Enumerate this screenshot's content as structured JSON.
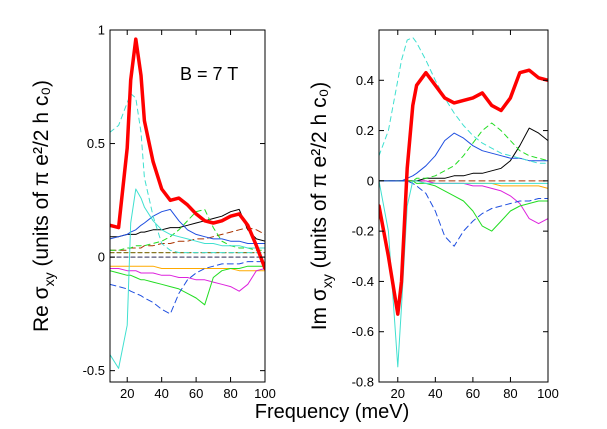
{
  "figure": {
    "xlabel": "Frequency  (meV)",
    "annotation": "B = 7 T"
  },
  "chart_data": [
    {
      "type": "line",
      "title": "",
      "ylabel_main": "Re σ",
      "ylabel_sub": "xy",
      "ylabel_units": "  (units of π e²/2 h c₀)",
      "xlim": [
        10,
        100
      ],
      "ylim": [
        -0.55,
        1.0
      ],
      "xticks": [
        20,
        40,
        60,
        80,
        100
      ],
      "yticks": [
        -0.5,
        0,
        0.5,
        1
      ],
      "ytick_labels": [
        "-0.5",
        "0",
        "0.5",
        "1"
      ],
      "x": [
        10,
        15,
        20,
        22,
        25,
        28,
        30,
        35,
        40,
        45,
        50,
        55,
        60,
        65,
        70,
        75,
        80,
        85,
        90,
        95,
        100
      ],
      "series": [
        {
          "name": "total",
          "color": "#ff0000",
          "width": 3.5,
          "dash": "",
          "values": [
            0.14,
            0.13,
            0.48,
            0.78,
            0.96,
            0.8,
            0.6,
            0.42,
            0.3,
            0.25,
            0.26,
            0.23,
            0.19,
            0.16,
            0.15,
            0.16,
            0.18,
            0.19,
            0.14,
            0.05,
            -0.05
          ]
        },
        {
          "name": "cyan",
          "color": "#40e0d0",
          "width": 1,
          "dash": "",
          "values": [
            -0.43,
            -0.49,
            -0.3,
            0.15,
            0.3,
            0.26,
            0.22,
            0.16,
            0.12,
            0.1,
            0.09,
            0.08,
            0.07,
            0.06,
            0.06,
            0.05,
            0.05,
            0.05,
            0.04,
            0.04,
            0.04
          ]
        },
        {
          "name": "cyan-dashed",
          "color": "#40e0d0",
          "width": 1,
          "dash": "5,4",
          "values": [
            0.55,
            0.58,
            0.68,
            0.72,
            0.7,
            0.55,
            0.35,
            0.18,
            0.06,
            0.03,
            0.02,
            0.02,
            0.02,
            0.02,
            0.02,
            0.02,
            0.02,
            0.02,
            0.02,
            0.02,
            0.02
          ]
        },
        {
          "name": "blue",
          "color": "#1f4fe0",
          "width": 1,
          "dash": "",
          "values": [
            0.08,
            0.09,
            0.1,
            0.11,
            0.12,
            0.14,
            0.15,
            0.18,
            0.2,
            0.21,
            0.16,
            0.12,
            0.1,
            0.09,
            0.08,
            0.08,
            0.07,
            0.07,
            0.06,
            0.06,
            0.06
          ]
        },
        {
          "name": "blue-dashed",
          "color": "#1f4fe0",
          "width": 1,
          "dash": "6,4",
          "values": [
            -0.12,
            -0.13,
            -0.14,
            -0.15,
            -0.16,
            -0.17,
            -0.18,
            -0.2,
            -0.23,
            -0.25,
            -0.16,
            -0.1,
            -0.07,
            -0.05,
            -0.04,
            -0.03,
            -0.03,
            -0.03,
            -0.02,
            -0.02,
            -0.02
          ]
        },
        {
          "name": "green",
          "color": "#22dd22",
          "width": 1,
          "dash": "",
          "values": [
            -0.06,
            -0.07,
            -0.08,
            -0.08,
            -0.09,
            -0.1,
            -0.1,
            -0.11,
            -0.12,
            -0.13,
            -0.14,
            -0.16,
            -0.18,
            -0.21,
            -0.09,
            -0.06,
            -0.05,
            -0.05,
            -0.04,
            -0.04,
            -0.04
          ]
        },
        {
          "name": "green-dashed",
          "color": "#22dd22",
          "width": 1,
          "dash": "5,4",
          "values": [
            0.03,
            0.03,
            0.04,
            0.04,
            0.05,
            0.05,
            0.05,
            0.06,
            0.07,
            0.09,
            0.12,
            0.16,
            0.2,
            0.21,
            0.13,
            0.07,
            0.05,
            0.04,
            0.04,
            0.03,
            0.03
          ]
        },
        {
          "name": "black",
          "color": "#000000",
          "width": 1,
          "dash": "",
          "values": [
            0.09,
            0.09,
            0.1,
            0.1,
            0.1,
            0.11,
            0.11,
            0.12,
            0.12,
            0.13,
            0.13,
            0.14,
            0.15,
            0.16,
            0.17,
            0.18,
            0.2,
            0.21,
            0.12,
            0.08,
            0.07
          ]
        },
        {
          "name": "purple",
          "color": "#dd22dd",
          "width": 1,
          "dash": "",
          "values": [
            -0.05,
            -0.05,
            -0.06,
            -0.06,
            -0.06,
            -0.07,
            -0.07,
            -0.07,
            -0.08,
            -0.08,
            -0.09,
            -0.09,
            -0.1,
            -0.1,
            -0.11,
            -0.12,
            -0.13,
            -0.15,
            -0.12,
            -0.06,
            -0.05
          ]
        },
        {
          "name": "orange",
          "color": "#ffaa00",
          "width": 1,
          "dash": "",
          "values": [
            -0.04,
            -0.04,
            -0.04,
            -0.04,
            -0.04,
            -0.04,
            -0.04,
            -0.04,
            -0.05,
            -0.05,
            -0.05,
            -0.05,
            -0.05,
            -0.05,
            -0.05,
            -0.05,
            -0.05,
            -0.06,
            -0.06,
            -0.06,
            -0.06
          ]
        },
        {
          "name": "brown-dashed",
          "color": "#aa3300",
          "width": 1,
          "dash": "6,4",
          "values": [
            0.03,
            0.03,
            0.03,
            0.04,
            0.04,
            0.04,
            0.05,
            0.05,
            0.06,
            0.06,
            0.07,
            0.07,
            0.08,
            0.08,
            0.09,
            0.1,
            0.11,
            0.12,
            0.13,
            0.12,
            0.1
          ]
        },
        {
          "name": "olive-dashed",
          "color": "#887722",
          "width": 1.2,
          "dash": "4,3",
          "values": [
            0.02,
            0.02,
            0.02,
            0.02,
            0.02,
            0.02,
            0.02,
            0.02,
            0.02,
            0.02,
            0.02,
            0.02,
            0.02,
            0.02,
            0.02,
            0.02,
            0.02,
            0.02,
            0.02,
            0.02,
            0.02
          ]
        },
        {
          "name": "grey-dashed",
          "color": "#555577",
          "width": 1.2,
          "dash": "4,3",
          "values": [
            0.0,
            0.0,
            0.0,
            0.0,
            0.0,
            0.0,
            0.0,
            0.0,
            0.0,
            0.0,
            0.0,
            0.0,
            0.0,
            0.0,
            0.0,
            0.0,
            0.0,
            0.0,
            0.0,
            0.0,
            0.0
          ]
        }
      ]
    },
    {
      "type": "line",
      "title": "",
      "ylabel_main": "Im σ",
      "ylabel_sub": "xy",
      "ylabel_units": "  (units of π e²/2 h c₀)",
      "xlim": [
        10,
        100
      ],
      "ylim": [
        -0.8,
        0.6
      ],
      "xticks": [
        20,
        40,
        60,
        80,
        100
      ],
      "yticks": [
        -0.8,
        -0.6,
        -0.4,
        -0.2,
        0,
        0.2,
        0.4
      ],
      "ytick_labels": [
        "-0.8",
        "-0.6",
        "-0.4",
        "-0.2",
        "0",
        "0.2",
        "0.4"
      ],
      "x": [
        10,
        15,
        20,
        22,
        25,
        28,
        30,
        35,
        40,
        45,
        50,
        55,
        60,
        65,
        70,
        75,
        80,
        85,
        90,
        95,
        100
      ],
      "series": [
        {
          "name": "total",
          "color": "#ff0000",
          "width": 3.5,
          "dash": "",
          "values": [
            -0.1,
            -0.3,
            -0.53,
            -0.4,
            0.05,
            0.3,
            0.38,
            0.43,
            0.38,
            0.33,
            0.31,
            0.32,
            0.33,
            0.35,
            0.3,
            0.28,
            0.33,
            0.43,
            0.44,
            0.41,
            0.4
          ]
        },
        {
          "name": "cyan",
          "color": "#40e0d0",
          "width": 1,
          "dash": "",
          "values": [
            0.0,
            -0.2,
            -0.74,
            -0.5,
            -0.1,
            0.0,
            0.0,
            -0.01,
            -0.01,
            -0.01,
            -0.01,
            -0.01,
            -0.01,
            -0.01,
            -0.01,
            -0.01,
            -0.01,
            -0.01,
            -0.01,
            -0.01,
            -0.01
          ]
        },
        {
          "name": "cyan-dashed",
          "color": "#40e0d0",
          "width": 1,
          "dash": "5,4",
          "values": [
            0.1,
            0.2,
            0.4,
            0.48,
            0.56,
            0.57,
            0.55,
            0.48,
            0.4,
            0.33,
            0.27,
            0.22,
            0.18,
            0.15,
            0.13,
            0.11,
            0.1,
            0.09,
            0.08,
            0.07,
            0.07
          ]
        },
        {
          "name": "blue",
          "color": "#1f4fe0",
          "width": 1,
          "dash": "",
          "values": [
            0.0,
            0.0,
            0.0,
            0.0,
            0.01,
            0.02,
            0.03,
            0.06,
            0.1,
            0.16,
            0.19,
            0.17,
            0.14,
            0.12,
            0.11,
            0.1,
            0.09,
            0.09,
            0.08,
            0.08,
            0.08
          ]
        },
        {
          "name": "blue-dashed",
          "color": "#1f4fe0",
          "width": 1,
          "dash": "6,4",
          "values": [
            0.0,
            0.0,
            0.0,
            0.0,
            0.0,
            -0.01,
            -0.02,
            -0.05,
            -0.12,
            -0.22,
            -0.26,
            -0.2,
            -0.16,
            -0.13,
            -0.11,
            -0.1,
            -0.09,
            -0.08,
            -0.08,
            -0.07,
            -0.07
          ]
        },
        {
          "name": "green",
          "color": "#22dd22",
          "width": 1,
          "dash": "",
          "values": [
            0.0,
            0.0,
            0.0,
            0.0,
            0.0,
            0.0,
            -0.01,
            -0.01,
            -0.02,
            -0.04,
            -0.06,
            -0.08,
            -0.12,
            -0.18,
            -0.2,
            -0.16,
            -0.12,
            -0.1,
            -0.09,
            -0.08,
            -0.08
          ]
        },
        {
          "name": "green-dashed",
          "color": "#22dd22",
          "width": 1,
          "dash": "5,4",
          "values": [
            0.0,
            0.0,
            0.0,
            0.0,
            0.0,
            0.0,
            0.01,
            0.01,
            0.02,
            0.04,
            0.06,
            0.1,
            0.15,
            0.2,
            0.23,
            0.2,
            0.16,
            0.12,
            0.1,
            0.09,
            0.08
          ]
        },
        {
          "name": "black",
          "color": "#000000",
          "width": 1,
          "dash": "",
          "values": [
            0.0,
            0.0,
            0.0,
            0.0,
            0.0,
            0.0,
            0.0,
            0.01,
            0.01,
            0.01,
            0.02,
            0.02,
            0.03,
            0.03,
            0.04,
            0.05,
            0.08,
            0.14,
            0.21,
            0.19,
            0.16
          ]
        },
        {
          "name": "purple",
          "color": "#dd22dd",
          "width": 1,
          "dash": "",
          "values": [
            0.0,
            0.0,
            0.0,
            0.0,
            0.0,
            0.0,
            0.0,
            0.0,
            -0.01,
            -0.01,
            -0.01,
            -0.01,
            -0.02,
            -0.02,
            -0.03,
            -0.04,
            -0.06,
            -0.09,
            -0.15,
            -0.17,
            -0.15
          ]
        },
        {
          "name": "orange",
          "color": "#ffaa00",
          "width": 1,
          "dash": "",
          "values": [
            0.0,
            0.0,
            0.0,
            0.0,
            0.0,
            0.0,
            0.0,
            -0.01,
            -0.01,
            -0.01,
            -0.01,
            -0.01,
            -0.01,
            -0.01,
            -0.01,
            -0.02,
            -0.02,
            -0.02,
            -0.02,
            -0.02,
            -0.03
          ]
        },
        {
          "name": "brown-dashed",
          "color": "#aa3300",
          "width": 1,
          "dash": "6,4",
          "values": [
            0.0,
            0.0,
            0.0,
            0.0,
            0.0,
            0.0,
            0.0,
            0.0,
            0.0,
            0.0,
            0.0,
            0.0,
            0.0,
            0.0,
            0.0,
            0.0,
            0.0,
            0.0,
            0.0,
            0.0,
            0.0
          ]
        }
      ]
    }
  ]
}
